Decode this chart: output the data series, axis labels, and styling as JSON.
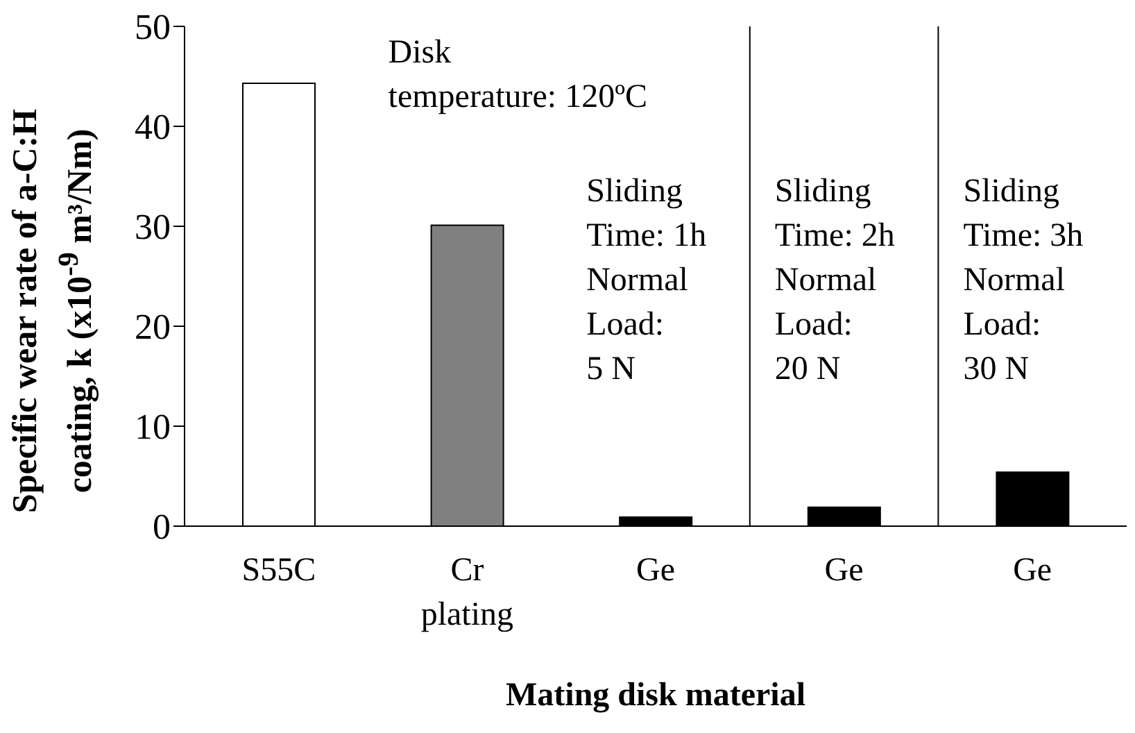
{
  "chart_data": {
    "type": "bar",
    "xlabel": "Mating disk material",
    "ylabel": "Specific wear rate of a-C:H\ncoating, k (x10$^{-9}$ m³/Nm)",
    "categories": [
      "S55C",
      "Cr plating",
      "Ge",
      "Ge",
      "Ge"
    ],
    "values": [
      44.3,
      30.1,
      0.9,
      1.9,
      5.4
    ],
    "colors": [
      "#ffffff",
      "#808080",
      "#000000",
      "#000000",
      "#000000"
    ],
    "ylim": [
      0,
      50
    ],
    "yticks": [
      0,
      10,
      20,
      30,
      40,
      50
    ],
    "annotations": [
      "Disk\ntemperature: 120ºC",
      "Sliding\nTime: 1h\nNormal\nLoad:\n5 N",
      "Sliding\nTime: 2h\nNormal\nLoad:\n20 N",
      "Sliding\nTime: 3h\nNormal\nLoad:\n30 N"
    ]
  }
}
